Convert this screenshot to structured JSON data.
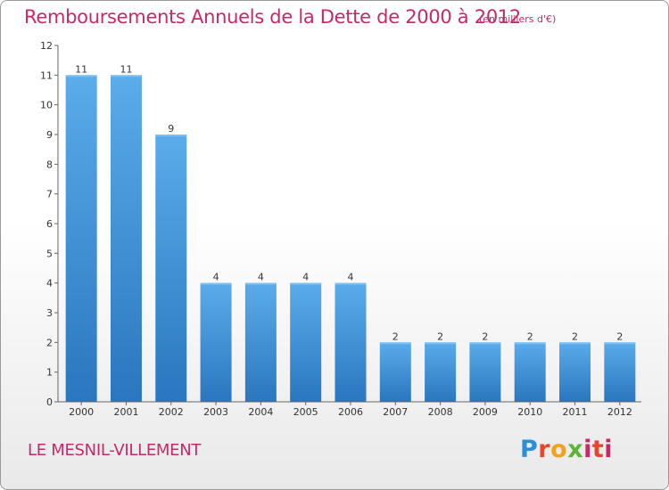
{
  "title": "Remboursements Annuels de la Dette de 2000 à 2012",
  "subtitle": "(en milliers d'€)",
  "location": "LE MESNIL-VILLEMENT",
  "logo": {
    "text": "Proxiti",
    "colors": [
      "#2a8fd6",
      "#e8452c",
      "#f4a11a",
      "#5bb534",
      "#c8286a"
    ]
  },
  "colors": {
    "accent": "#c8286a",
    "bar": "#3d8fd8",
    "bar_light": "#5aacea",
    "bar_dark": "#2a76bf"
  },
  "chart_data": {
    "type": "bar",
    "categories": [
      "2000",
      "2001",
      "2002",
      "2003",
      "2004",
      "2005",
      "2006",
      "2007",
      "2008",
      "2009",
      "2010",
      "2011",
      "2012"
    ],
    "values": [
      11,
      11,
      9,
      4,
      4,
      4,
      4,
      2,
      2,
      2,
      2,
      2,
      2
    ],
    "data_labels": [
      "11",
      "11",
      "9",
      "4",
      "4",
      "4",
      "4",
      "2",
      "2",
      "2",
      "2",
      "2",
      "2"
    ],
    "title": "Remboursements Annuels de la Dette de 2000 à 2012",
    "subtitle": "(en milliers d'€)",
    "xlabel": "",
    "ylabel": "",
    "ylim": [
      0,
      12
    ],
    "yticks": [
      "0",
      "1",
      "2",
      "3",
      "4",
      "5",
      "6",
      "7",
      "8",
      "9",
      "10",
      "11",
      "12"
    ],
    "grid": false,
    "legend": "none"
  }
}
